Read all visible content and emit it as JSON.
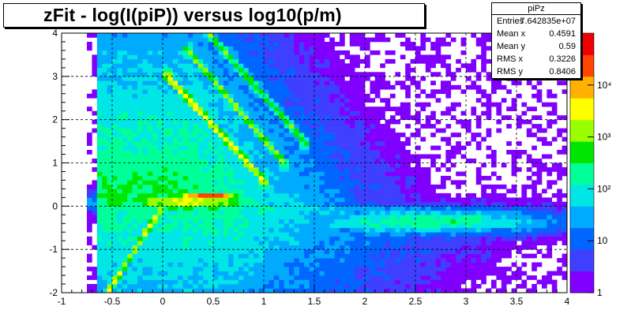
{
  "title": "zFit - log(I(piP)) versus log10(p/m)",
  "stats": {
    "name": "piPz",
    "rows": [
      {
        "label": "Entries",
        "value": "7.642835e+07"
      },
      {
        "label": "Mean x",
        "value": "0.4591"
      },
      {
        "label": "Mean y",
        "value": "0.59"
      },
      {
        "label": "RMS x",
        "value": "0.3226"
      },
      {
        "label": "RMS y",
        "value": "0.8406"
      }
    ]
  },
  "chart_data": {
    "type": "heatmap",
    "title": "zFit - log(I(piP)) versus log10(p/m)",
    "xlabel": "",
    "ylabel": "",
    "xlim": [
      -1,
      4
    ],
    "ylim": [
      -2,
      4
    ],
    "grid": true,
    "x_ticks": [
      "-1",
      "-0.5",
      "0",
      "0.5",
      "1",
      "1.5",
      "2",
      "2.5",
      "3",
      "3.5",
      "4"
    ],
    "y_ticks": [
      "-2",
      "-1",
      "0",
      "1",
      "2",
      "3",
      "4"
    ],
    "color_scale": {
      "type": "log",
      "range": [
        1,
        100000
      ],
      "tick_labels": [
        "1",
        "10",
        "10²",
        "10³",
        "10⁴"
      ],
      "colors": [
        "#8000ff",
        "#3f3fff",
        "#0066ff",
        "#00aaff",
        "#00e5e5",
        "#00ff99",
        "#00e600",
        "#99ff00",
        "#ffff00",
        "#ffb000",
        "#ff4400",
        "#ee0000"
      ]
    },
    "features": [
      {
        "name": "core",
        "x": 0.45,
        "y": 0.25,
        "peak": "1e4"
      },
      {
        "name": "pion band",
        "from": [
          0.05,
          3.0
        ],
        "to": [
          1.0,
          0.6
        ]
      },
      {
        "name": "kaon band",
        "from": [
          0.25,
          3.6
        ],
        "to": [
          1.2,
          1.0
        ]
      },
      {
        "name": "proton band",
        "from": [
          0.45,
          4.0
        ],
        "to": [
          1.4,
          1.5
        ]
      },
      {
        "name": "low momentum band",
        "from": [
          -0.55,
          -2.0
        ],
        "to": [
          0.0,
          0.0
        ]
      }
    ]
  }
}
